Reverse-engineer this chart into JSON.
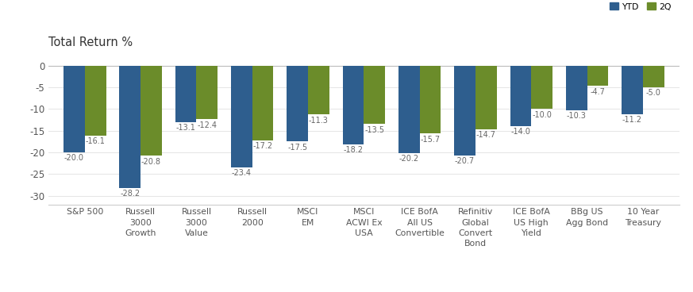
{
  "categories": [
    "S&P 500",
    "Russell\n3000\nGrowth",
    "Russell\n3000\nValue",
    "Russell\n2000",
    "MSCI\nEM",
    "MSCI\nACWI Ex\nUSA",
    "ICE BofA\nAll US\nConvertible",
    "Refinitiv\nGlobal\nConvert\nBond",
    "ICE BofA\nUS High\nYield",
    "BBg US\nAgg Bond",
    "10 Year\nTreasury"
  ],
  "ytd_values": [
    -20.0,
    -28.2,
    -13.1,
    -23.4,
    -17.5,
    -18.2,
    -20.2,
    -20.7,
    -14.0,
    -10.3,
    -11.2
  ],
  "q2_values": [
    -16.1,
    -20.8,
    -12.4,
    -17.2,
    -11.3,
    -13.5,
    -15.7,
    -14.7,
    -10.0,
    -4.7,
    -5.0
  ],
  "ytd_color": "#2E5E8E",
  "q2_color": "#6B8C2A",
  "title": "Total Return %",
  "title_fontsize": 10.5,
  "ylim": [
    -32,
    3
  ],
  "yticks": [
    0,
    -5,
    -10,
    -15,
    -20,
    -25,
    -30
  ],
  "bar_width": 0.38,
  "legend_labels": [
    "YTD",
    "2Q"
  ],
  "background_color": "#FFFFFF",
  "label_fontsize": 7.0,
  "axis_fontsize": 7.8,
  "tick_fontsize": 8.5
}
